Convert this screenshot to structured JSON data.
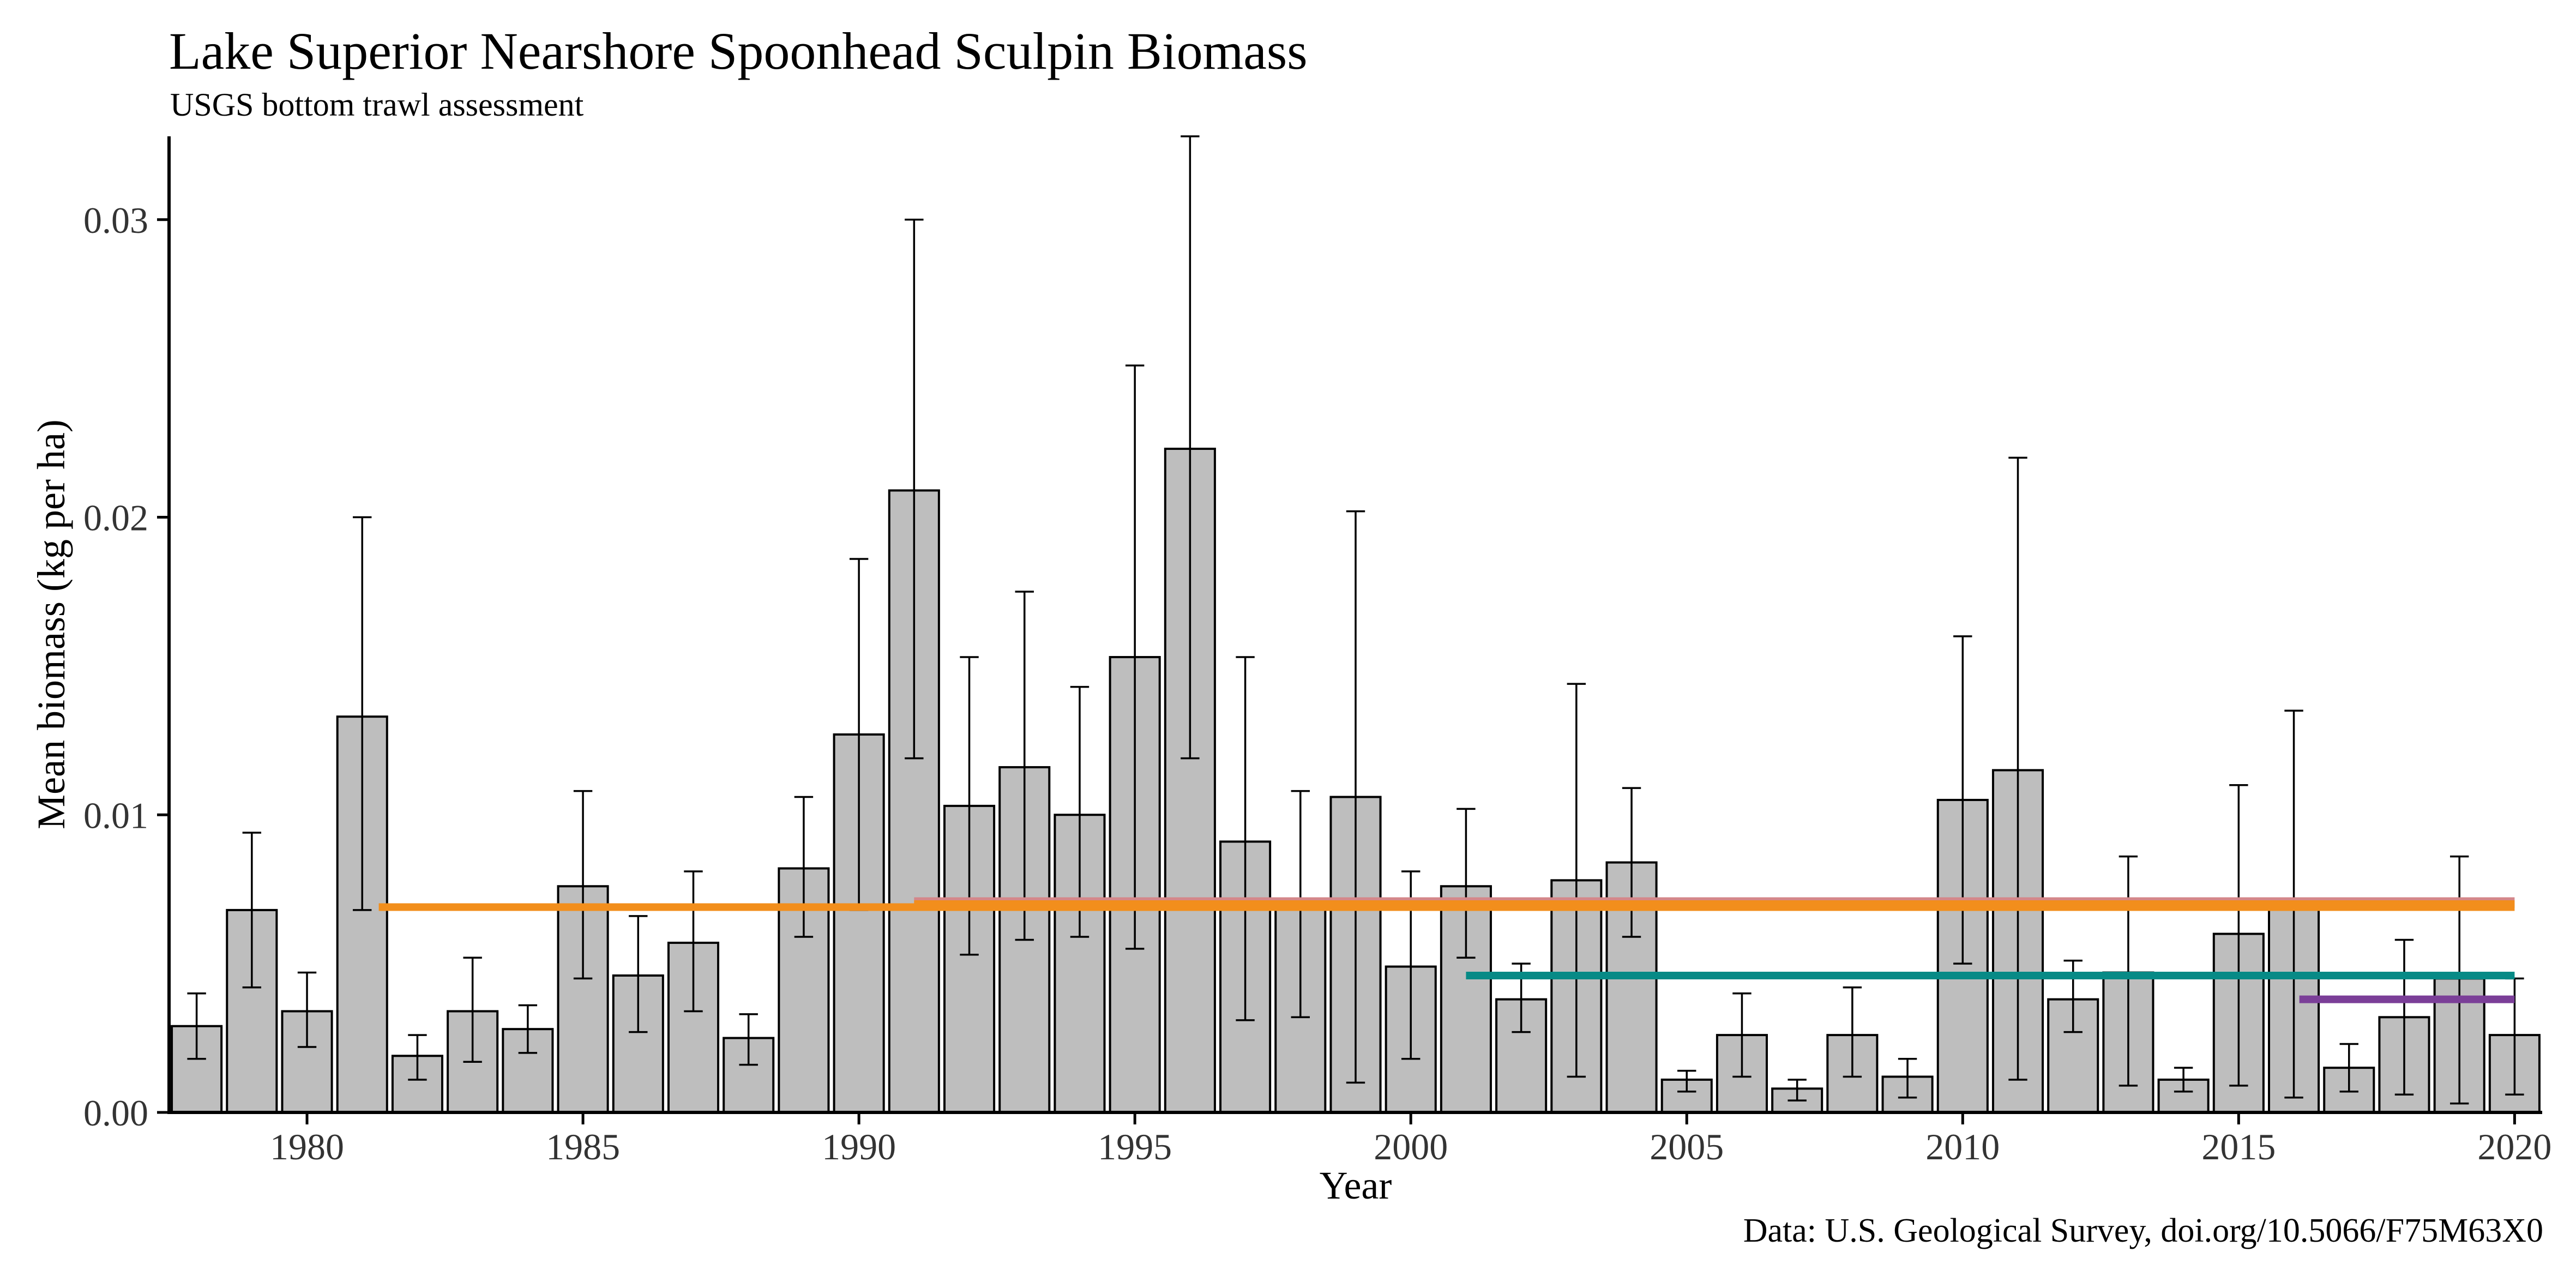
{
  "chart_data": {
    "type": "bar",
    "title": "Lake Superior Nearshore Spoonhead Sculpin Biomass",
    "subtitle": "USGS bottom trawl assessment",
    "xlabel": "Year",
    "ylabel": "Mean biomass (kg per ha)",
    "caption": "Data: U.S. Geological Survey, doi.org/10.5066/F75M63X0",
    "xlim": [
      1977.5,
      2020.5
    ],
    "ylim": [
      0,
      0.0328
    ],
    "x_ticks": [
      1980,
      1985,
      1990,
      1995,
      2000,
      2005,
      2010,
      2015,
      2020
    ],
    "x_tick_labels": [
      "1980",
      "1985",
      "1990",
      "1995",
      "2000",
      "2005",
      "2010",
      "2015",
      "2020"
    ],
    "y_ticks": [
      0,
      0.01,
      0.02,
      0.03
    ],
    "y_tick_labels": [
      "0.00",
      "0.01",
      "0.02",
      "0.03"
    ],
    "grid": false,
    "legend": "none",
    "bar_fill": "#bebebe",
    "bar_stroke": "#000000",
    "years": [
      1978,
      1979,
      1980,
      1981,
      1982,
      1983,
      1984,
      1985,
      1986,
      1987,
      1988,
      1989,
      1990,
      1991,
      1992,
      1993,
      1994,
      1995,
      1996,
      1997,
      1998,
      1999,
      2000,
      2001,
      2002,
      2003,
      2004,
      2005,
      2006,
      2007,
      2008,
      2009,
      2010,
      2011,
      2012,
      2013,
      2014,
      2015,
      2016,
      2017,
      2018,
      2019,
      2020
    ],
    "values": [
      0.0029,
      0.0068,
      0.0034,
      0.0133,
      0.0019,
      0.0034,
      0.0028,
      0.0076,
      0.0046,
      0.0057,
      0.0025,
      0.0082,
      0.0127,
      0.0209,
      0.0103,
      0.0116,
      0.01,
      0.0153,
      0.0223,
      0.0091,
      0.007,
      0.0106,
      0.0049,
      0.0076,
      0.0038,
      0.0078,
      0.0084,
      0.0011,
      0.0026,
      0.0008,
      0.0026,
      0.0012,
      0.0105,
      0.0115,
      0.0038,
      0.0047,
      0.0011,
      0.006,
      0.007,
      0.0015,
      0.0032,
      0.0045,
      0.0026
    ],
    "error_low": [
      0.0018,
      0.0042,
      0.0022,
      0.0068,
      0.0011,
      0.0017,
      0.002,
      0.0045,
      0.0027,
      0.0034,
      0.0016,
      0.0059,
      0.0068,
      0.0119,
      0.0053,
      0.0058,
      0.0059,
      0.0055,
      0.0119,
      0.0031,
      0.0032,
      0.001,
      0.0018,
      0.0052,
      0.0027,
      0.0012,
      0.0059,
      0.0007,
      0.0012,
      0.0004,
      0.0012,
      0.0005,
      0.005,
      0.0011,
      0.0027,
      0.0009,
      0.0007,
      0.0009,
      0.0005,
      0.0007,
      0.0006,
      0.0003,
      0.0006
    ],
    "error_high": [
      0.004,
      0.0094,
      0.0047,
      0.02,
      0.0026,
      0.0052,
      0.0036,
      0.0108,
      0.0066,
      0.0081,
      0.0033,
      0.0106,
      0.0186,
      0.03,
      0.0153,
      0.0175,
      0.0143,
      0.0251,
      0.0328,
      0.0153,
      0.0108,
      0.0202,
      0.0081,
      0.0102,
      0.005,
      0.0144,
      0.0109,
      0.0014,
      0.004,
      0.0011,
      0.0042,
      0.0018,
      0.016,
      0.022,
      0.0051,
      0.0086,
      0.0015,
      0.011,
      0.0135,
      0.0023,
      0.0058,
      0.0086,
      0.0045
    ],
    "mean_lines": [
      {
        "x_start": 1981.3,
        "x_end": 2020,
        "y": 0.0069,
        "color": "#f28e1c"
      },
      {
        "x_start": 1991,
        "x_end": 2020,
        "y": 0.0071,
        "color": "#d4878a"
      },
      {
        "x_start": 1991,
        "x_end": 2020,
        "y": 0.007,
        "color": "#f28e1c"
      },
      {
        "x_start": 2001,
        "x_end": 2020,
        "y": 0.0046,
        "color": "#078a86"
      },
      {
        "x_start": 2016.1,
        "x_end": 2020,
        "y": 0.0038,
        "color": "#7b3f98"
      }
    ]
  }
}
